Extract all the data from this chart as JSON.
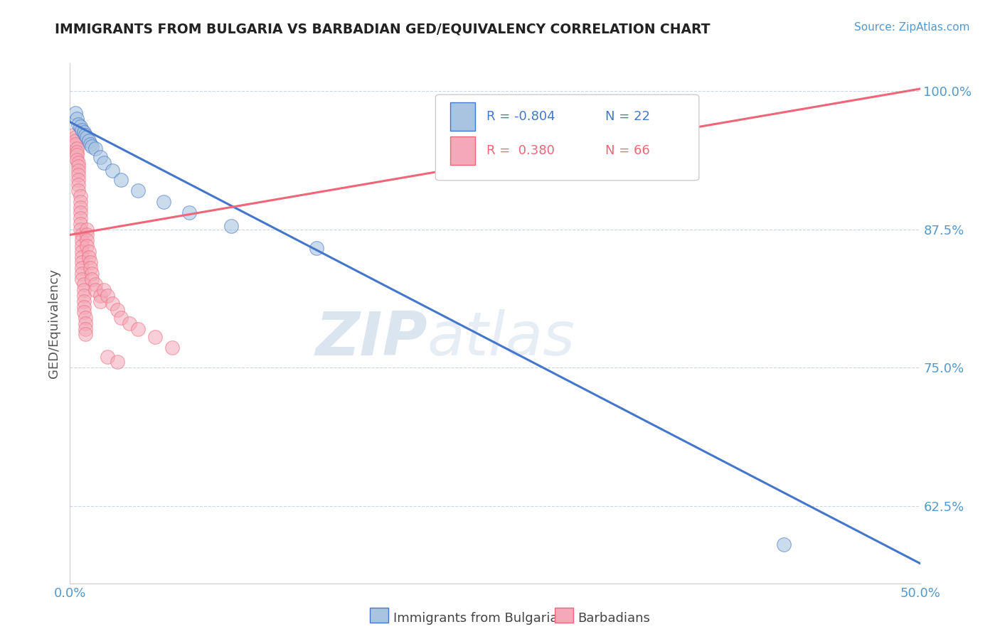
{
  "title": "IMMIGRANTS FROM BULGARIA VS BARBADIAN GED/EQUIVALENCY CORRELATION CHART",
  "source": "Source: ZipAtlas.com",
  "ylabel": "GED/Equivalency",
  "x_label_blue": "Immigrants from Bulgaria",
  "x_label_pink": "Barbadians",
  "xlim": [
    0.0,
    0.5
  ],
  "ylim": [
    0.555,
    1.025
  ],
  "xtick_labels": [
    "0.0%",
    "50.0%"
  ],
  "xtick_vals": [
    0.0,
    0.5
  ],
  "ytick_vals": [
    0.625,
    0.75,
    0.875,
    1.0
  ],
  "ytick_labels": [
    "62.5%",
    "75.0%",
    "87.5%",
    "100.0%"
  ],
  "legend_R_blue": "-0.804",
  "legend_N_blue": "22",
  "legend_R_pink": "0.380",
  "legend_N_pink": "66",
  "blue_color": "#A8C4E0",
  "pink_color": "#F4A8B8",
  "blue_line_color": "#4477CC",
  "pink_line_color": "#EE6677",
  "watermark_zip": "ZIP",
  "watermark_atlas": "atlas",
  "blue_scatter": [
    [
      0.003,
      0.98
    ],
    [
      0.004,
      0.975
    ],
    [
      0.005,
      0.97
    ],
    [
      0.006,
      0.968
    ],
    [
      0.007,
      0.965
    ],
    [
      0.008,
      0.963
    ],
    [
      0.009,
      0.96
    ],
    [
      0.01,
      0.958
    ],
    [
      0.011,
      0.955
    ],
    [
      0.012,
      0.952
    ],
    [
      0.013,
      0.95
    ],
    [
      0.015,
      0.948
    ],
    [
      0.018,
      0.94
    ],
    [
      0.02,
      0.935
    ],
    [
      0.025,
      0.928
    ],
    [
      0.03,
      0.92
    ],
    [
      0.04,
      0.91
    ],
    [
      0.055,
      0.9
    ],
    [
      0.07,
      0.89
    ],
    [
      0.095,
      0.878
    ],
    [
      0.145,
      0.858
    ],
    [
      0.42,
      0.59
    ]
  ],
  "pink_scatter": [
    [
      0.002,
      0.96
    ],
    [
      0.003,
      0.958
    ],
    [
      0.003,
      0.955
    ],
    [
      0.003,
      0.952
    ],
    [
      0.004,
      0.948
    ],
    [
      0.004,
      0.945
    ],
    [
      0.004,
      0.942
    ],
    [
      0.004,
      0.938
    ],
    [
      0.005,
      0.935
    ],
    [
      0.005,
      0.932
    ],
    [
      0.005,
      0.928
    ],
    [
      0.005,
      0.924
    ],
    [
      0.005,
      0.92
    ],
    [
      0.005,
      0.915
    ],
    [
      0.005,
      0.91
    ],
    [
      0.006,
      0.905
    ],
    [
      0.006,
      0.9
    ],
    [
      0.006,
      0.895
    ],
    [
      0.006,
      0.89
    ],
    [
      0.006,
      0.885
    ],
    [
      0.006,
      0.88
    ],
    [
      0.006,
      0.875
    ],
    [
      0.007,
      0.87
    ],
    [
      0.007,
      0.865
    ],
    [
      0.007,
      0.86
    ],
    [
      0.007,
      0.855
    ],
    [
      0.007,
      0.85
    ],
    [
      0.007,
      0.845
    ],
    [
      0.007,
      0.84
    ],
    [
      0.007,
      0.835
    ],
    [
      0.007,
      0.83
    ],
    [
      0.008,
      0.825
    ],
    [
      0.008,
      0.82
    ],
    [
      0.008,
      0.815
    ],
    [
      0.008,
      0.81
    ],
    [
      0.008,
      0.805
    ],
    [
      0.008,
      0.8
    ],
    [
      0.009,
      0.795
    ],
    [
      0.009,
      0.79
    ],
    [
      0.009,
      0.785
    ],
    [
      0.009,
      0.78
    ],
    [
      0.01,
      0.875
    ],
    [
      0.01,
      0.87
    ],
    [
      0.01,
      0.865
    ],
    [
      0.01,
      0.86
    ],
    [
      0.011,
      0.855
    ],
    [
      0.011,
      0.85
    ],
    [
      0.012,
      0.845
    ],
    [
      0.012,
      0.84
    ],
    [
      0.013,
      0.835
    ],
    [
      0.013,
      0.83
    ],
    [
      0.015,
      0.825
    ],
    [
      0.015,
      0.82
    ],
    [
      0.018,
      0.815
    ],
    [
      0.018,
      0.81
    ],
    [
      0.02,
      0.82
    ],
    [
      0.022,
      0.815
    ],
    [
      0.025,
      0.808
    ],
    [
      0.028,
      0.802
    ],
    [
      0.03,
      0.795
    ],
    [
      0.035,
      0.79
    ],
    [
      0.04,
      0.785
    ],
    [
      0.05,
      0.778
    ],
    [
      0.022,
      0.76
    ],
    [
      0.028,
      0.755
    ],
    [
      0.06,
      0.768
    ]
  ],
  "blue_line_x": [
    0.0,
    0.5
  ],
  "blue_line_y": [
    0.972,
    0.573
  ],
  "pink_line_x": [
    0.0,
    0.5
  ],
  "pink_line_y": [
    0.87,
    1.002
  ]
}
